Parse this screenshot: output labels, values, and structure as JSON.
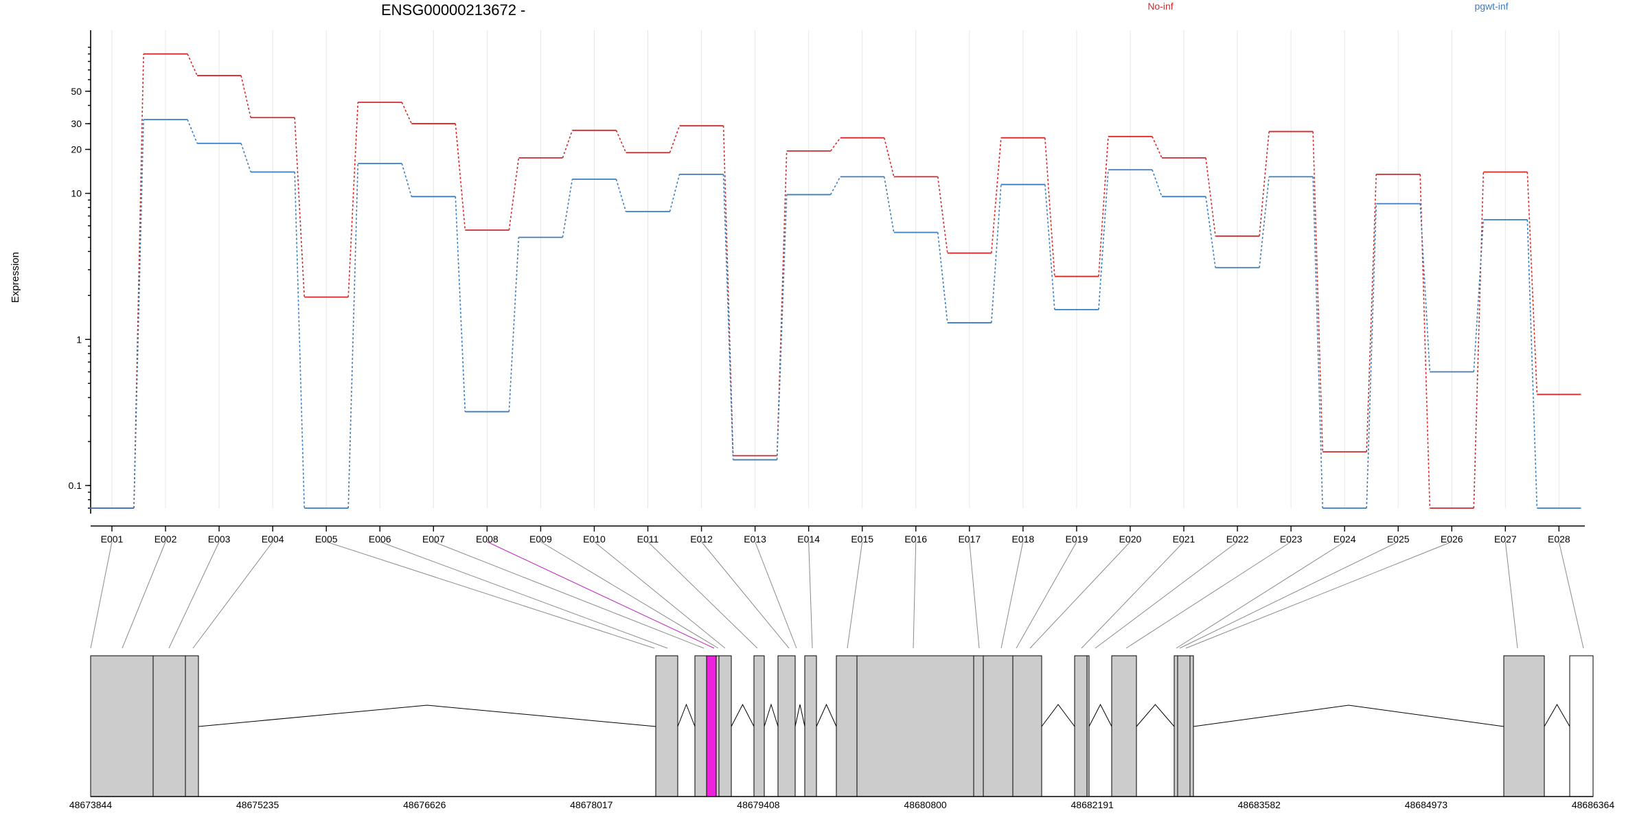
{
  "chart_data": {
    "type": "line",
    "title": "ENSG00000213672 -",
    "ylabel": "Expression",
    "yscale": "log",
    "ylim": [
      0.07,
      120
    ],
    "y_ticks": [
      0.1,
      1,
      10,
      20,
      30,
      50
    ],
    "y_tick_labels": [
      "0.1",
      "1",
      "10",
      "20",
      "30",
      "50"
    ],
    "grid": true,
    "legend_placement": "top-right",
    "categories": [
      "E001",
      "E002",
      "E003",
      "E004",
      "E005",
      "E006",
      "E007",
      "E008",
      "E009",
      "E010",
      "E011",
      "E012",
      "E013",
      "E014",
      "E015",
      "E016",
      "E017",
      "E018",
      "E019",
      "E020",
      "E021",
      "E022",
      "E023",
      "E024",
      "E025",
      "E026",
      "E027",
      "E028"
    ],
    "series": [
      {
        "name": "No-inf",
        "color": "#d62728",
        "values": [
          0.07,
          90,
          64,
          33,
          1.95,
          42,
          30,
          5.6,
          17.5,
          27,
          19,
          29,
          0.16,
          19.5,
          24,
          13,
          3.9,
          24,
          2.7,
          24.5,
          17.5,
          5.1,
          26.5,
          0.17,
          13.5,
          0.07,
          14,
          0.42
        ]
      },
      {
        "name": "pgwt-inf",
        "color": "#3a7dbf",
        "values": [
          0.07,
          32,
          22,
          14,
          0.07,
          16,
          9.5,
          0.32,
          5,
          12.5,
          7.5,
          13.5,
          0.15,
          9.8,
          13,
          5.4,
          1.3,
          11.5,
          1.6,
          14.5,
          9.5,
          3.1,
          13,
          0.07,
          8.5,
          0.6,
          6.6,
          0.07
        ]
      }
    ],
    "highlight_exon": "E008",
    "genome_axis": {
      "tick_labels": [
        "48673844",
        "48675235",
        "48676626",
        "48678017",
        "48679408",
        "48680800",
        "48682191",
        "48683582",
        "48684973",
        "48686364"
      ],
      "range": [
        48673844,
        48686364
      ]
    }
  },
  "colors": {
    "no_inf": "#d62728",
    "pgwt_inf": "#3a7dbf",
    "highlight": "#ee22dd",
    "exon_fill": "#cccccc"
  }
}
